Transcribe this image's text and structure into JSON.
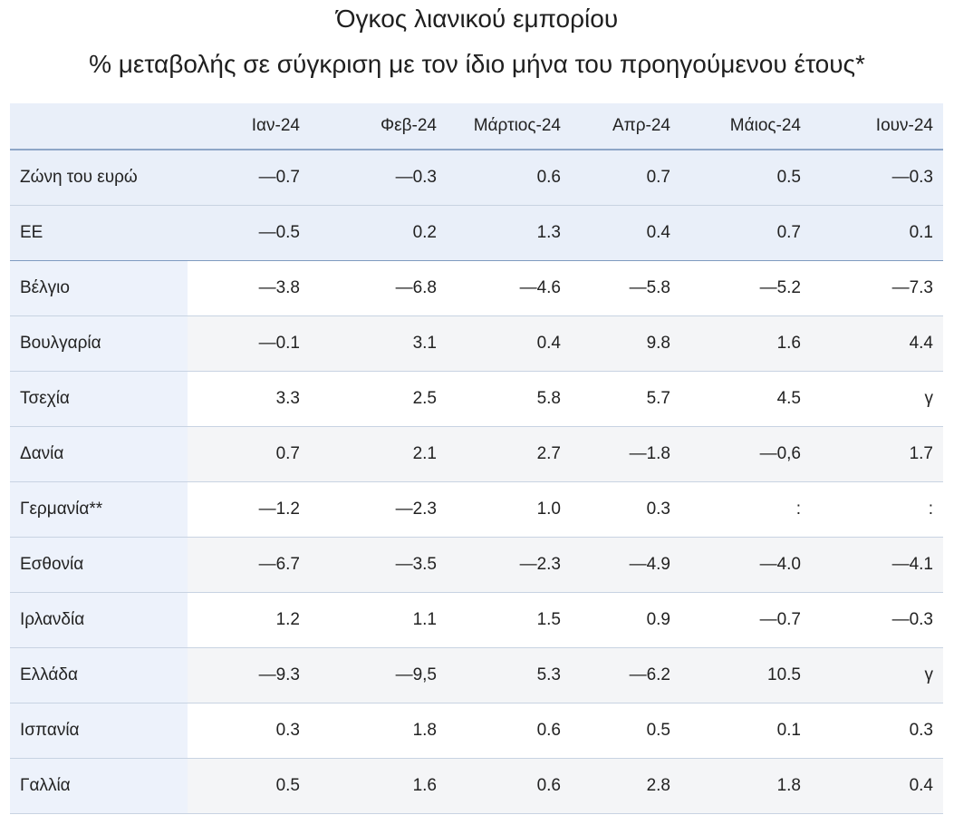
{
  "chart_data": {
    "type": "table",
    "title": "Όγκος λιανικού εμπορίου",
    "subtitle": "% μεταβολής σε σύγκριση με τον ίδιο μήνα του προηγούμενου έτους*",
    "columns": [
      "Ιαν-24",
      "Φεβ-24",
      "Μάρτιος-24",
      "Απρ-24",
      "Μάιος-24",
      "Ιουν-24"
    ],
    "rows": [
      {
        "country": "Ζώνη του ευρώ",
        "values": [
          "—0.7",
          "—0.3",
          "0.6",
          "0.7",
          "0.5",
          "—0.3"
        ]
      },
      {
        "country": "ΕΕ",
        "values": [
          "—0.5",
          "0.2",
          "1.3",
          "0.4",
          "0.7",
          "0.1"
        ]
      },
      {
        "country": "Βέλγιο",
        "values": [
          "—3.8",
          "—6.8",
          "—4.6",
          "—5.8",
          "—5.2",
          "—7.3"
        ]
      },
      {
        "country": "Βουλγαρία",
        "values": [
          "—0.1",
          "3.1",
          "0.4",
          "9.8",
          "1.6",
          "4.4"
        ]
      },
      {
        "country": "Τσεχία",
        "values": [
          "3.3",
          "2.5",
          "5.8",
          "5.7",
          "4.5",
          "γ"
        ]
      },
      {
        "country": "Δανία",
        "values": [
          "0.7",
          "2.1",
          "2.7",
          "—1.8",
          "—0,6",
          "1.7"
        ]
      },
      {
        "country": "Γερμανία**",
        "values": [
          "—1.2",
          "—2.3",
          "1.0",
          "0.3",
          ":",
          ":"
        ]
      },
      {
        "country": "Εσθονία",
        "values": [
          "—6.7",
          "—3.5",
          "—2.3",
          "—4.9",
          "—4.0",
          "—4.1"
        ]
      },
      {
        "country": "Ιρλανδία",
        "values": [
          "1.2",
          "1.1",
          "1.5",
          "0.9",
          "—0.7",
          "—0.3"
        ]
      },
      {
        "country": "Ελλάδα",
        "values": [
          "—9.3",
          "—9,5",
          "5.3",
          "—6.2",
          "10.5",
          "γ"
        ]
      },
      {
        "country": "Ισπανία",
        "values": [
          "0.3",
          "1.8",
          "0.6",
          "0.5",
          "0.1",
          "0.3"
        ]
      },
      {
        "country": "Γαλλία",
        "values": [
          "0.5",
          "1.6",
          "0.6",
          "2.8",
          "1.8",
          "0.4"
        ]
      }
    ]
  },
  "colors": {
    "header_bg": "#e9eff9",
    "country_bg": "#edf2fb",
    "alt_row_bg": "#f4f5f7",
    "rule": "#8ea6c7"
  }
}
